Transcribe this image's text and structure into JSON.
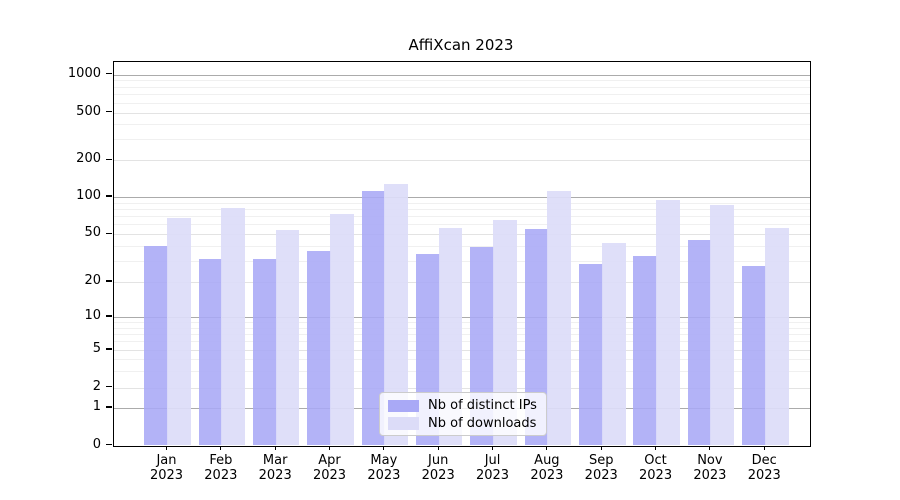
{
  "chart_data": {
    "type": "bar",
    "title": "AffiXcan 2023",
    "categories": [
      {
        "label": "Jan",
        "sublabel": "2023"
      },
      {
        "label": "Feb",
        "sublabel": "2023"
      },
      {
        "label": "Mar",
        "sublabel": "2023"
      },
      {
        "label": "Apr",
        "sublabel": "2023"
      },
      {
        "label": "May",
        "sublabel": "2023"
      },
      {
        "label": "Jun",
        "sublabel": "2023"
      },
      {
        "label": "Jul",
        "sublabel": "2023"
      },
      {
        "label": "Aug",
        "sublabel": "2023"
      },
      {
        "label": "Sep",
        "sublabel": "2023"
      },
      {
        "label": "Oct",
        "sublabel": "2023"
      },
      {
        "label": "Nov",
        "sublabel": "2023"
      },
      {
        "label": "Dec",
        "sublabel": "2023"
      }
    ],
    "series": [
      {
        "name": "Nb of distinct IPs",
        "color": "#a9a9f6",
        "values": [
          40,
          31,
          31,
          36,
          111,
          34,
          39,
          55,
          28,
          33,
          45,
          27
        ]
      },
      {
        "name": "Nb of downloads",
        "color": "#dcdcf8",
        "values": [
          68,
          81,
          54,
          73,
          128,
          56,
          65,
          112,
          42,
          95,
          86,
          56
        ]
      }
    ],
    "xlabel": "",
    "ylabel": "",
    "yticks": [
      0,
      1,
      2,
      5,
      10,
      20,
      50,
      100,
      200,
      500,
      1000
    ],
    "ylim": [
      0,
      1300
    ],
    "scale": "symlog",
    "grid": true,
    "legend_position": "lower center"
  }
}
